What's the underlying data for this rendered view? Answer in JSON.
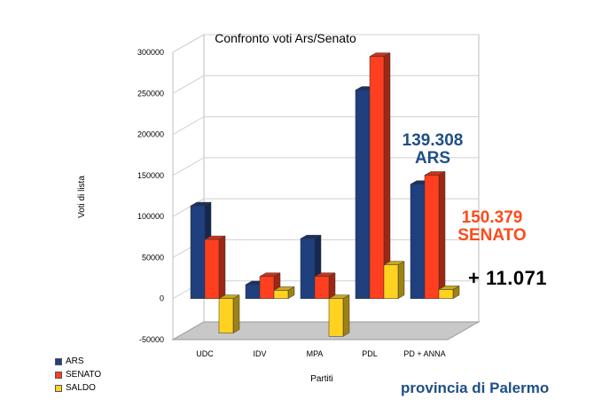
{
  "chart_data": {
    "type": "bar",
    "title": "Confronto voti Ars/Senato",
    "xlabel": "Partiti",
    "ylabel": "Voti di lista",
    "categories": [
      "UDC",
      "IDV",
      "MPA",
      "PDL",
      "PD + ANNA"
    ],
    "ylim": [
      -50000,
      300000
    ],
    "yticks": [
      "300000",
      "250000",
      "200000",
      "150000",
      "100000",
      "50000",
      "0",
      "-50000"
    ],
    "series": [
      {
        "name": "ARS",
        "color": "#1F3F7F",
        "values": [
          113000,
          17000,
          73000,
          254000,
          139308
        ]
      },
      {
        "name": "SENATO",
        "color": "#FF3F1F",
        "values": [
          72000,
          27000,
          27000,
          295000,
          150379
        ]
      },
      {
        "name": "SALDO",
        "color": "#FFD21F",
        "values": [
          -42000,
          10000,
          -46000,
          41000,
          11071
        ]
      }
    ],
    "grid": true,
    "legend": "bottom-left"
  },
  "annotations": {
    "ars_value": "139.308",
    "ars_label": "ARS",
    "senato_value": "150.379",
    "senato_label": "SENATO",
    "saldo": "+ 11.071"
  },
  "footer": "provincia di Palermo"
}
